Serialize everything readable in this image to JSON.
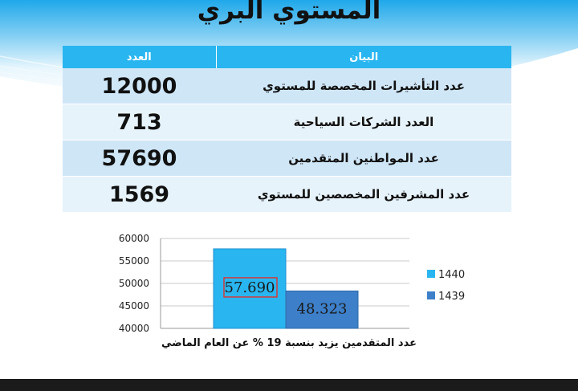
{
  "title": "المستوي البري",
  "table": {
    "headers": {
      "item": "البيان",
      "count": "العدد"
    },
    "rows": [
      {
        "item": "عدد التأشيرات المخصصة للمستوي",
        "count": "12000"
      },
      {
        "item": "العدد الشركات السياحية",
        "count": "713"
      },
      {
        "item": "عدد المواطنين المتقدمين",
        "count": "57690"
      },
      {
        "item": "عدد المشرفين المخصصين للمستوي",
        "count": "1569"
      }
    ]
  },
  "chart_caption": "عدد المتقدمين يزيد بنسبة  19 % عن العام الماضي",
  "chart_data": {
    "type": "bar",
    "ylim": [
      40000,
      60000
    ],
    "yticks": [
      "40000",
      "45000",
      "50000",
      "55000",
      "60000"
    ],
    "grid": true,
    "legend_position": "right",
    "series": [
      {
        "name": "1440",
        "value": 57690,
        "label": "57.690",
        "color": "#29b6f0"
      },
      {
        "name": "1439",
        "value": 48323,
        "label": "48.323",
        "color": "#3d7fc9"
      }
    ]
  }
}
